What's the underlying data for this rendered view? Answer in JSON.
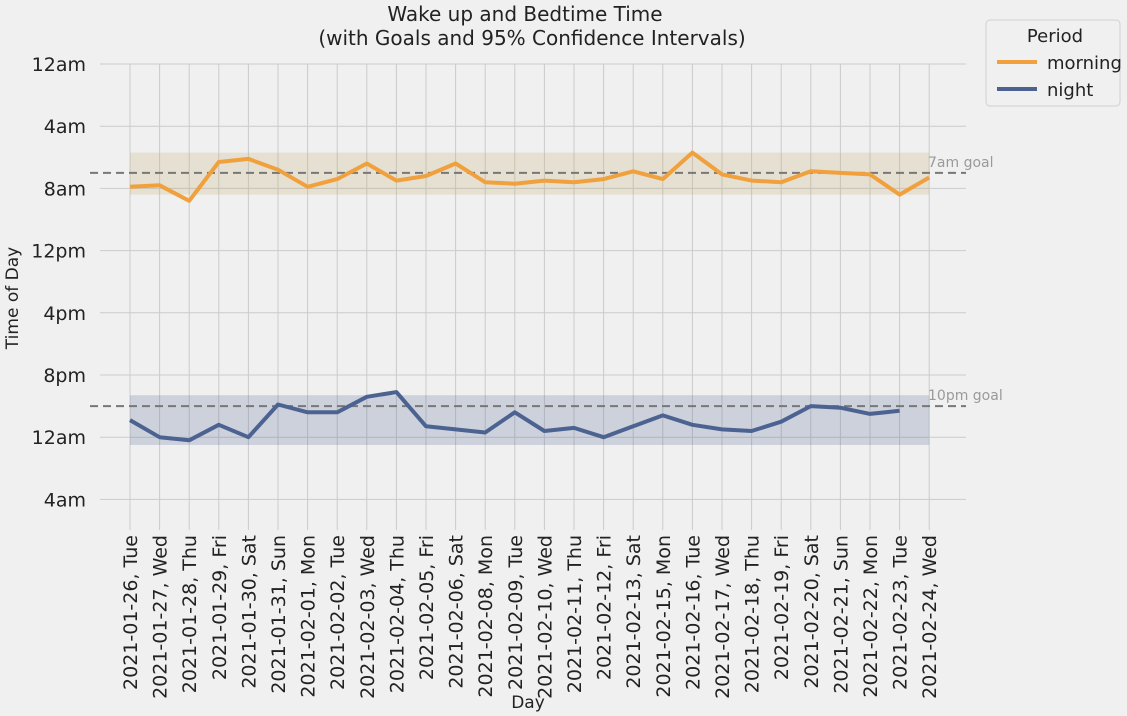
{
  "chart_data": {
    "type": "line",
    "title_line1": "Wake up and Bedtime Time",
    "title_line2": "(with Goals and 95% Confidence Intervals)",
    "xlabel": "Day",
    "ylabel": "Time of Day",
    "y_tick_labels": [
      "12am",
      "4am",
      "8am",
      "12pm",
      "4pm",
      "8pm",
      "12am",
      "4am"
    ],
    "y_tick_hours": [
      0,
      4,
      8,
      12,
      16,
      20,
      24,
      28
    ],
    "ylim_hours": [
      0,
      30
    ],
    "y_inverted": true,
    "grid": true,
    "legend": {
      "title": "Period",
      "placement": "outside top-right"
    },
    "x_categories": [
      "2021-01-26, Tue",
      "2021-01-27, Wed",
      "2021-01-28, Thu",
      "2021-01-29, Fri",
      "2021-01-30, Sat",
      "2021-01-31, Sun",
      "2021-02-01, Mon",
      "2021-02-02, Tue",
      "2021-02-03, Wed",
      "2021-02-04, Thu",
      "2021-02-05, Fri",
      "2021-02-06, Sat",
      "2021-02-08, Mon",
      "2021-02-09, Tue",
      "2021-02-10, Wed",
      "2021-02-11, Thu",
      "2021-02-12, Fri",
      "2021-02-13, Sat",
      "2021-02-15, Mon",
      "2021-02-16, Tue",
      "2021-02-17, Wed",
      "2021-02-18, Thu",
      "2021-02-19, Fri",
      "2021-02-20, Sat",
      "2021-02-21, Sun",
      "2021-02-22, Mon",
      "2021-02-23, Tue",
      "2021-02-24, Wed"
    ],
    "series": [
      {
        "name": "morning",
        "color": "#f0a03c",
        "values_hours": [
          7.9,
          7.8,
          8.8,
          6.3,
          6.1,
          6.8,
          7.9,
          7.4,
          6.4,
          7.5,
          7.2,
          6.4,
          7.6,
          7.7,
          7.5,
          7.6,
          7.4,
          6.9,
          7.4,
          5.7,
          7.1,
          7.5,
          7.6,
          6.9,
          7.0,
          7.1,
          8.4,
          7.3
        ],
        "goal_hours": 7,
        "goal_label": "7am goal",
        "ci_hours": [
          5.7,
          8.4
        ]
      },
      {
        "name": "night",
        "color": "#4c6391",
        "values_hours": [
          22.9,
          24.0,
          24.2,
          23.2,
          24.0,
          21.9,
          22.4,
          22.4,
          21.4,
          21.1,
          23.3,
          23.5,
          23.7,
          22.4,
          23.6,
          23.4,
          24.0,
          23.3,
          22.6,
          23.2,
          23.5,
          23.6,
          23.0,
          22.0,
          22.1,
          22.5,
          22.3
        ],
        "goal_hours": 22,
        "goal_label": "10pm goal",
        "ci_hours": [
          21.3,
          24.5
        ]
      }
    ]
  }
}
